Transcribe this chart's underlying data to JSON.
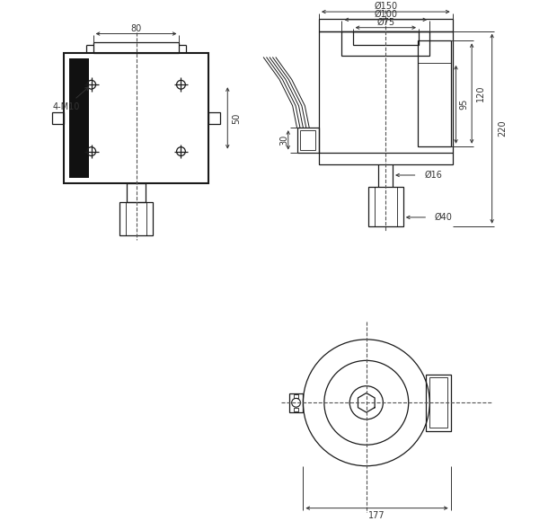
{
  "bg_color": "#ffffff",
  "line_color": "#1a1a1a",
  "dim_color": "#333333",
  "fig_width": 6.2,
  "fig_height": 5.8,
  "dpi": 100,
  "annotations": {
    "dim_80": "80",
    "dim_50": "50",
    "dim_4M10": "4-M10",
    "dim_150": "Ø150",
    "dim_100": "Ø100",
    "dim_75": "Ø75",
    "dim_95": "95",
    "dim_120": "120",
    "dim_220": "220",
    "dim_30": "30",
    "dim_16": "Ø16",
    "dim_40": "Ø40",
    "dim_177": "177"
  }
}
